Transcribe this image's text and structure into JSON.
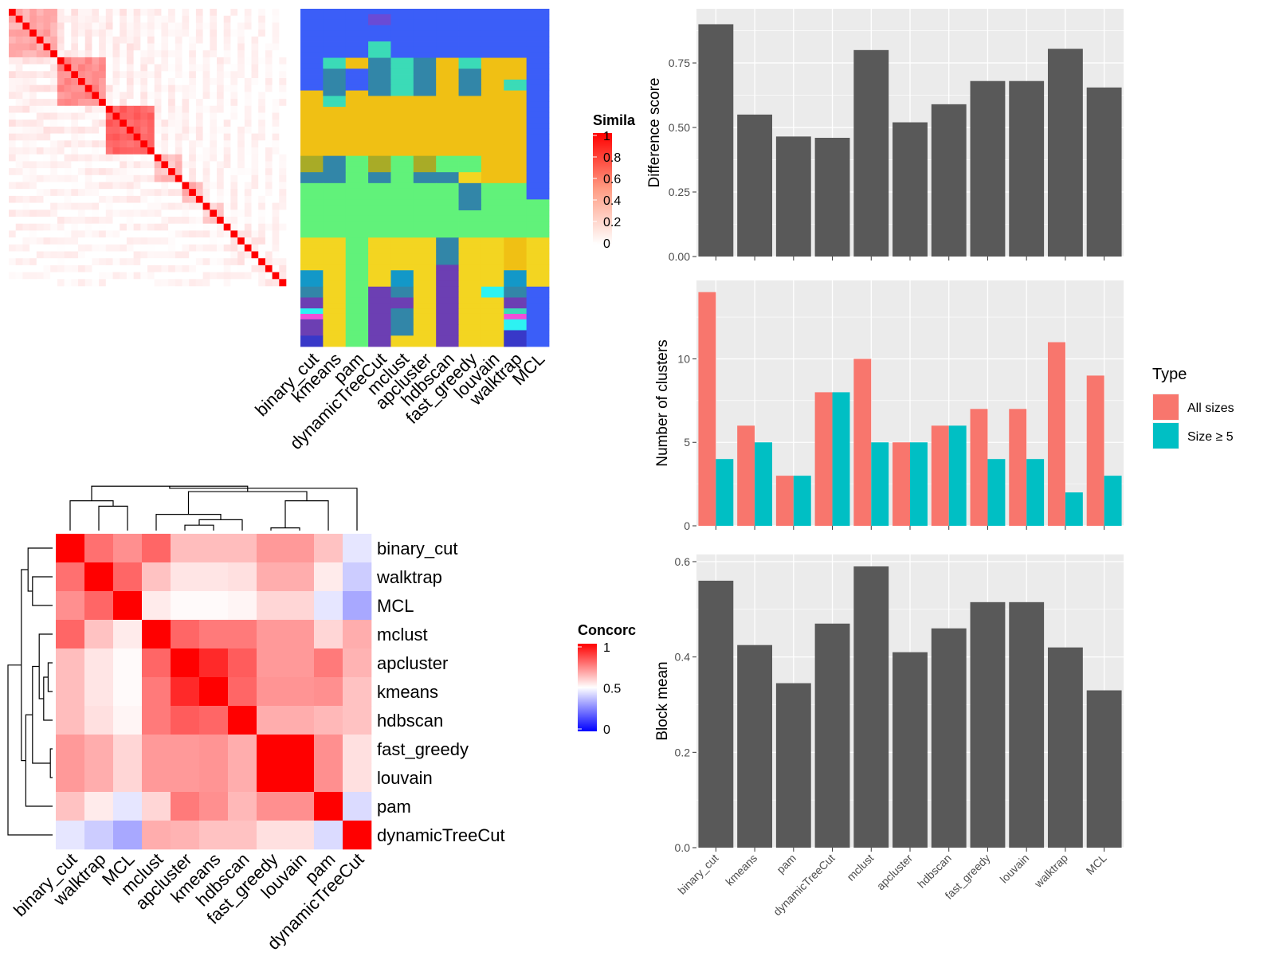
{
  "chart_data": [
    {
      "id": "similarity_heatmap",
      "type": "heatmap",
      "legend": {
        "title": "Simila",
        "ticks": [
          "1",
          "0.8",
          "0.6",
          "0.4",
          "0.2",
          "0"
        ],
        "low_color": "#ffffff",
        "high_color": "#ff0000"
      },
      "clusters": [
        {
          "start": 0,
          "size": 7,
          "sim": 0.35
        },
        {
          "start": 7,
          "size": 7,
          "sim": 0.45
        },
        {
          "start": 14,
          "size": 7,
          "sim": 0.6
        },
        {
          "start": 21,
          "size": 4,
          "sim": 0.25
        },
        {
          "start": 25,
          "size": 3,
          "sim": 0.3
        },
        {
          "start": 28,
          "size": 3,
          "sim": 0.2
        },
        {
          "start": 31,
          "size": 9,
          "sim": 0.05
        }
      ],
      "n": 40,
      "background_sim": 0.08
    },
    {
      "id": "cluster_assignment",
      "type": "heatmap",
      "columns": [
        "binary_cut",
        "kmeans",
        "pam",
        "dynamicTreeCut",
        "mclust",
        "apcluster",
        "hdbscan",
        "fast_greedy",
        "louvain",
        "walktrap",
        "MCL"
      ],
      "colors": {
        "A": "#3b5ef8",
        "B": "#6a4bd5",
        "C": "#3bdbb7",
        "D": "#f0c014",
        "E": "#3286a8",
        "F": "#61f27a",
        "G": "#a8ab27",
        "H": "#f3d521",
        "I": "#6c3fb3",
        "J": "#1398c8",
        "K": "#2df2f2",
        "L": "#f04fd8",
        "M": "#3838c8"
      },
      "rows": [
        "AAAAAAAAAAA",
        "AAABAAAAAAA",
        "AAABAAAAAAA",
        "AAAAAAAAAAA",
        "AAAAAAAAAAA",
        "AAAAAAAAAAA",
        "AAACAAAAAAA",
        "AAACAAAAAAA",
        "AAACAAAAAAA",
        "ACDECEDCDDA",
        "ACDECEDCDDA",
        "AEAECEDEDDA",
        "AEAECEDEDDA",
        "AEAECEDEDCA",
        "AEAECEDEDCA",
        "DEDECEDEDDA",
        "DCDDDDDDDDA",
        "DCDDDDDDDDA",
        "DDDDDDDDDDA",
        "DDDDDDDDDDA",
        "DDDDDDDDDDA",
        "DDDDDDDDDDA",
        "DDDDDDDDDDA",
        "DDDDDDDDDDA",
        "DDDDDDDDDDA",
        "DDDDDDDDDDA",
        "DDDDDDDDDDA",
        "GEFGFGFFDDA",
        "GEFGFGFFDDA",
        "GEFGFGFFDDA",
        "EEFEFEEHDDA",
        "EEFEFEEHDDA",
        "FFFFFFFEFFA",
        "FFFFFFFEFFA",
        "FFFFFFFEFFA",
        "FFFFFFFEFFF",
        "FFFFFFFEFFF",
        "FFFFFFFFFFF",
        "FFFFFFFFFFF",
        "FFFFFFFFFFF",
        "FFFFFFFFFFF",
        "FFFFFFFFFFF",
        "HHFHHHEHHDH",
        "HHFHHHEHHDH",
        "HHFHHHEHHDH",
        "HHFHHHEHHDH",
        "HHFHHHEHHDH",
        "HHFHHHIHHDH",
        "JHFHJHIHHJH",
        "JHFHJHIHHJH",
        "JHFHJHIHHJH",
        "EHFIEHIHKEA",
        "EHFIEHIHKEA",
        "IHFIIHIHHIA",
        "IHFIIHIHHIA",
        "KHFIEHIHHCA",
        "LHFIEHIHHLA",
        "IHFIEHIHHKA",
        "IHFIEHIHHKA",
        "IHFIEHIHHMA",
        "MHFIHHIHHMA",
        "MHFIHHIHHMA"
      ]
    },
    {
      "id": "concordance_heatmap",
      "type": "heatmap",
      "labels": [
        "binary_cut",
        "walktrap",
        "MCL",
        "mclust",
        "apcluster",
        "kmeans",
        "hdbscan",
        "fast_greedy",
        "louvain",
        "pam",
        "dynamicTreeCut"
      ],
      "legend": {
        "title": "Concorc",
        "ticks": [
          "1",
          "0.5",
          "0"
        ],
        "low_color": "#0000ff",
        "mid_color": "#ffffff",
        "high_color": "#ff0000"
      },
      "values": [
        [
          1.0,
          0.78,
          0.72,
          0.8,
          0.63,
          0.63,
          0.63,
          0.7,
          0.7,
          0.62,
          0.45
        ],
        [
          0.78,
          1.0,
          0.8,
          0.62,
          0.55,
          0.55,
          0.56,
          0.66,
          0.66,
          0.54,
          0.4
        ],
        [
          0.72,
          0.8,
          1.0,
          0.54,
          0.51,
          0.51,
          0.52,
          0.58,
          0.58,
          0.45,
          0.33
        ],
        [
          0.8,
          0.62,
          0.54,
          1.0,
          0.8,
          0.76,
          0.76,
          0.7,
          0.7,
          0.58,
          0.66
        ],
        [
          0.63,
          0.55,
          0.51,
          0.8,
          1.0,
          0.92,
          0.82,
          0.7,
          0.7,
          0.76,
          0.65
        ],
        [
          0.63,
          0.55,
          0.51,
          0.76,
          0.92,
          1.0,
          0.8,
          0.71,
          0.71,
          0.72,
          0.62
        ],
        [
          0.63,
          0.56,
          0.52,
          0.76,
          0.82,
          0.8,
          1.0,
          0.66,
          0.66,
          0.64,
          0.62
        ],
        [
          0.7,
          0.66,
          0.58,
          0.7,
          0.7,
          0.71,
          0.66,
          1.0,
          1.0,
          0.72,
          0.56
        ],
        [
          0.7,
          0.66,
          0.58,
          0.7,
          0.7,
          0.71,
          0.66,
          1.0,
          1.0,
          0.72,
          0.56
        ],
        [
          0.62,
          0.54,
          0.45,
          0.58,
          0.76,
          0.72,
          0.64,
          0.72,
          0.72,
          1.0,
          0.43
        ],
        [
          0.45,
          0.4,
          0.33,
          0.66,
          0.65,
          0.62,
          0.62,
          0.56,
          0.56,
          0.43,
          1.0
        ]
      ]
    },
    {
      "id": "difference_score",
      "type": "bar",
      "categories": [
        "binary_cut",
        "kmeans",
        "pam",
        "dynamicTreeCut",
        "mclust",
        "apcluster",
        "hdbscan",
        "fast_greedy",
        "louvain",
        "walktrap",
        "MCL"
      ],
      "values": [
        0.9,
        0.55,
        0.465,
        0.46,
        0.8,
        0.52,
        0.59,
        0.68,
        0.68,
        0.805,
        0.655
      ],
      "ylabel": "Difference score",
      "ylim": [
        0,
        0.96
      ],
      "yticks": [
        "0.00",
        "0.25",
        "0.50",
        "0.75"
      ],
      "ytick_values": [
        0,
        0.25,
        0.5,
        0.75
      ],
      "bar_color": "#595959"
    },
    {
      "id": "number_of_clusters",
      "type": "bar",
      "categories": [
        "binary_cut",
        "kmeans",
        "pam",
        "dynamicTreeCut",
        "mclust",
        "apcluster",
        "hdbscan",
        "fast_greedy",
        "louvain",
        "walktrap",
        "MCL"
      ],
      "series": [
        {
          "name": "All sizes",
          "values": [
            14,
            6,
            3,
            8,
            10,
            5,
            6,
            7,
            7,
            11,
            9
          ],
          "color": "#f8766d"
        },
        {
          "name": "Size ≥ 5",
          "values": [
            4,
            5,
            3,
            8,
            5,
            5,
            6,
            4,
            4,
            2,
            3
          ],
          "color": "#00bfc4"
        }
      ],
      "ylabel": "Number of clusters",
      "ylim": [
        0,
        14.7
      ],
      "yticks": [
        "0",
        "5",
        "10"
      ],
      "ytick_values": [
        0,
        5,
        10
      ],
      "legend": {
        "title": "Type",
        "position": "right"
      }
    },
    {
      "id": "block_mean",
      "type": "bar",
      "categories": [
        "binary_cut",
        "kmeans",
        "pam",
        "dynamicTreeCut",
        "mclust",
        "apcluster",
        "hdbscan",
        "fast_greedy",
        "louvain",
        "walktrap",
        "MCL"
      ],
      "values": [
        0.56,
        0.425,
        0.345,
        0.47,
        0.59,
        0.41,
        0.46,
        0.515,
        0.515,
        0.42,
        0.33
      ],
      "ylabel": "Block mean",
      "ylim": [
        0,
        0.615
      ],
      "yticks": [
        "0.0",
        "0.2",
        "0.4",
        "0.6"
      ],
      "ytick_values": [
        0,
        0.2,
        0.4,
        0.6
      ],
      "bar_color": "#595959"
    }
  ]
}
